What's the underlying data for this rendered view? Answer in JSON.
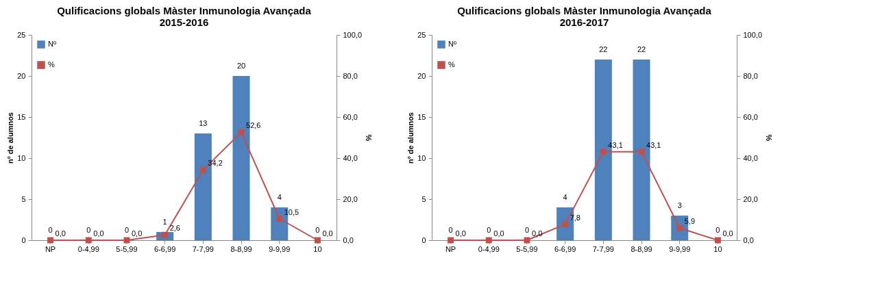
{
  "chart_data": [
    {
      "type": "bar",
      "title": "Qulificacions globals Màster Inmunologia Avançada\n2015-2016",
      "ylabel": "nº de alumnos",
      "y2label": "%",
      "categories": [
        "NP",
        "0-4,99",
        "5-5,99",
        "6-6,99",
        "7-7,99",
        "8-8,99",
        "9-9,99",
        "10"
      ],
      "series": [
        {
          "name": "Nº",
          "color": "#4f81bd",
          "values": [
            0,
            0,
            0,
            1,
            13,
            20,
            4,
            0
          ],
          "value_labels": [
            "0",
            "0",
            "0",
            "1",
            "13",
            "20",
            "4",
            "0"
          ]
        },
        {
          "name": "%",
          "type": "line",
          "axis": "y2",
          "color": "#c0504d",
          "values": [
            0,
            0,
            0,
            2.6,
            34.2,
            52.6,
            10.5,
            0
          ],
          "value_labels": [
            "0,0",
            "0,0",
            "0,0",
            "2,6",
            "34,2",
            "52,6",
            "10,5",
            "0,0"
          ]
        }
      ],
      "ylim": [
        0,
        25
      ],
      "yticks": [
        0,
        5,
        10,
        15,
        20,
        25
      ],
      "y2lim": [
        0,
        100
      ],
      "y2ticks": [
        {
          "value": 0,
          "label": "0,0"
        },
        {
          "value": 20,
          "label": "20,0"
        },
        {
          "value": 40,
          "label": "40,0"
        },
        {
          "value": 60,
          "label": "60,0"
        },
        {
          "value": 80,
          "label": "80,0"
        },
        {
          "value": 100,
          "label": "100,0"
        }
      ],
      "legend": "top left",
      "marker": "square"
    },
    {
      "type": "bar",
      "title": "Qulificacions globals Màster Inmunologia Avançada\n2016-2017",
      "ylabel": "nº de alumnos",
      "y2label": "%",
      "categories": [
        "NP",
        "0-4,99",
        "5-5,99",
        "6-6,99",
        "7-7,99",
        "8-8,99",
        "9-9,99",
        "10"
      ],
      "series": [
        {
          "name": "Nº",
          "color": "#4f81bd",
          "values": [
            0,
            0,
            0,
            4,
            22,
            22,
            3,
            0
          ],
          "value_labels": [
            "0",
            "0",
            "0",
            "4",
            "22",
            "22",
            "3",
            "0"
          ]
        },
        {
          "name": "%",
          "type": "line",
          "axis": "y2",
          "color": "#c0504d",
          "values": [
            0,
            0,
            0,
            7.8,
            43.1,
            43.1,
            5.9,
            0
          ],
          "value_labels": [
            "0,0",
            "0,0",
            "0,0",
            "7,8",
            "43,1",
            "43,1",
            "5,9",
            "0,0"
          ]
        }
      ],
      "ylim": [
        0,
        25
      ],
      "yticks": [
        0,
        5,
        10,
        15,
        20,
        25
      ],
      "y2lim": [
        0,
        100
      ],
      "y2ticks": [
        {
          "value": 0,
          "label": "0,0"
        },
        {
          "value": 20,
          "label": "20,0"
        },
        {
          "value": 40,
          "label": "40,0"
        },
        {
          "value": 60,
          "label": "60,0"
        },
        {
          "value": 80,
          "label": "80,0"
        },
        {
          "value": 100,
          "label": "100,0"
        }
      ],
      "legend": "top left",
      "marker": "square"
    }
  ]
}
